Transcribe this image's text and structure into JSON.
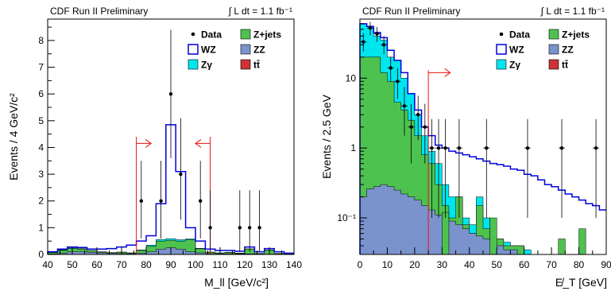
{
  "colors": {
    "wz_line": "#0000dd",
    "zgamma": "#00e5ee",
    "zjets": "#4ec24e",
    "zz": "#7a93cc",
    "ttbar": "#cc3333",
    "cut": "#ee1111"
  },
  "chart_data": [
    {
      "type": "bar",
      "header_left": "CDF Run II Preliminary",
      "header_right": "∫ L dt = 1.1 fb⁻¹",
      "xlabel": "M_ll [GeV/c²]",
      "ylabel": "Events / 4 GeV/c²",
      "xlim": [
        40,
        140
      ],
      "ylim": [
        0,
        8.8
      ],
      "xticks": [
        40,
        50,
        60,
        70,
        80,
        90,
        100,
        110,
        120,
        130,
        140
      ],
      "yticks": [
        0,
        1,
        2,
        3,
        4,
        5,
        6,
        7,
        8
      ],
      "legend_position": "top-right",
      "legend": [
        {
          "key": "data",
          "label": "Data",
          "kind": "marker"
        },
        {
          "key": "zjets",
          "label": "Z+jets",
          "kind": "fill"
        },
        {
          "key": "wz",
          "label": "WZ",
          "kind": "outline"
        },
        {
          "key": "zz",
          "label": "ZZ",
          "kind": "fill"
        },
        {
          "key": "zgamma",
          "label": "Zγ",
          "kind": "fill"
        },
        {
          "key": "ttbar",
          "label": "tt̄",
          "kind": "fill"
        }
      ],
      "bin_width": 4,
      "bin_edges_start": [
        40,
        44,
        48,
        52,
        56,
        60,
        64,
        68,
        72,
        76,
        80,
        84,
        88,
        92,
        96,
        100,
        104,
        108,
        112,
        116,
        120,
        124,
        128,
        132,
        136
      ],
      "stack": {
        "zz": [
          0.02,
          0.05,
          0.1,
          0.1,
          0.08,
          0.06,
          0.04,
          0.03,
          0.03,
          0.05,
          0.1,
          0.2,
          0.25,
          0.2,
          0.1,
          0.06,
          0.03,
          0.02,
          0.02,
          0.02,
          0.02,
          0.01,
          0.01,
          0.01,
          0.01
        ],
        "zjets": [
          0.05,
          0.1,
          0.12,
          0.1,
          0.06,
          0.03,
          0.02,
          0.05,
          0.02,
          0.1,
          0.2,
          0.3,
          0.28,
          0.3,
          0.45,
          0.15,
          0.05,
          0.03,
          0.05,
          0.02,
          0.18,
          0.02,
          0.15,
          0.02,
          0.01
        ],
        "zgamma": [
          0.01,
          0.02,
          0.02,
          0.02,
          0.01,
          0.01,
          0.01,
          0.01,
          0.01,
          0.02,
          0.05,
          0.06,
          0.06,
          0.05,
          0.03,
          0.02,
          0.01,
          0.01,
          0.01,
          0.01,
          0.01,
          0.01,
          0.01,
          0.01,
          0.01
        ],
        "ttbar": [
          0,
          0,
          0,
          0,
          0,
          0,
          0,
          0,
          0,
          0,
          0,
          0,
          0,
          0,
          0,
          0,
          0,
          0,
          0,
          0,
          0,
          0,
          0,
          0,
          0
        ]
      },
      "wz_total": [
        0.1,
        0.2,
        0.28,
        0.26,
        0.2,
        0.2,
        0.22,
        0.28,
        0.35,
        0.5,
        0.7,
        1.9,
        4.85,
        3.1,
        1.0,
        0.5,
        0.2,
        0.15,
        0.15,
        0.12,
        0.28,
        0.1,
        0.22,
        0.1,
        0.05
      ],
      "data_points": [
        {
          "x": 78,
          "y": 2,
          "err_lo": 1.4,
          "err_hi": 1.5
        },
        {
          "x": 86,
          "y": 2,
          "err_lo": 1.4,
          "err_hi": 1.5
        },
        {
          "x": 90,
          "y": 6,
          "err_lo": 2.4,
          "err_hi": 2.4
        },
        {
          "x": 94,
          "y": 3,
          "err_lo": 1.7,
          "err_hi": 2.1
        },
        {
          "x": 102,
          "y": 2,
          "err_lo": 1.4,
          "err_hi": 1.5
        },
        {
          "x": 106,
          "y": 1,
          "err_lo": 0.9,
          "err_hi": 1.4
        },
        {
          "x": 118,
          "y": 1,
          "err_lo": 0.9,
          "err_hi": 1.4
        },
        {
          "x": 122,
          "y": 1,
          "err_lo": 0.9,
          "err_hi": 1.4
        },
        {
          "x": 126,
          "y": 1,
          "err_lo": 0.9,
          "err_hi": 1.4
        }
      ],
      "cuts": [
        {
          "x": 76,
          "y_top": 4.4,
          "arrow": "right",
          "arrow_y": 4.15,
          "arrow_to": 82
        },
        {
          "x": 106,
          "y_top": 4.4,
          "arrow": "left",
          "arrow_y": 4.15,
          "arrow_to": 100
        }
      ]
    },
    {
      "type": "bar",
      "yscale": "log",
      "header_left": "CDF Run II Preliminary",
      "header_right": "∫ L dt = 1.1 fb⁻¹",
      "xlabel": "E̸_T [GeV]",
      "ylabel": "Events / 2.5 GeV",
      "xlim": [
        0,
        90
      ],
      "ylim": [
        0.03,
        70
      ],
      "xticks": [
        0,
        10,
        20,
        30,
        40,
        50,
        60,
        70,
        80,
        90
      ],
      "yticks": [
        0.1,
        1,
        10
      ],
      "ytick_labels": [
        "10⁻¹",
        "1",
        "10"
      ],
      "legend_position": "top-right",
      "legend": [
        {
          "key": "data",
          "label": "Data",
          "kind": "marker"
        },
        {
          "key": "zjets",
          "label": "Z+jets",
          "kind": "fill"
        },
        {
          "key": "wz",
          "label": "WZ",
          "kind": "outline"
        },
        {
          "key": "zz",
          "label": "ZZ",
          "kind": "fill"
        },
        {
          "key": "zgamma",
          "label": "Zγ",
          "kind": "fill"
        },
        {
          "key": "ttbar",
          "label": "tt̄",
          "kind": "fill"
        }
      ],
      "bin_width": 2.5,
      "zz": [
        0.2,
        0.26,
        0.28,
        0.3,
        0.28,
        0.25,
        0.22,
        0.2,
        0.18,
        0.15,
        0.13,
        0.11,
        0.1,
        0.09,
        0.08,
        0.07,
        0.06,
        0.055,
        0.05,
        0.045,
        0.04,
        0.035,
        0.035,
        0.03,
        0.03,
        0.03
      ],
      "zz_plus_zjets": [
        20,
        20,
        20,
        12,
        9,
        4.5,
        3.5,
        2.5,
        1.5,
        0.8,
        0.6,
        0.3,
        0.15,
        0.1,
        0.2,
        0.08,
        0.06,
        0.15,
        0.07,
        0.05,
        0.05,
        0.04,
        0.04,
        0.04,
        0.03,
        0.03
      ],
      "total_stack": [
        60,
        55,
        40,
        35,
        20,
        18,
        10,
        6,
        3,
        1.5,
        0.9,
        0.6,
        0.3,
        0.2,
        0.2,
        0.1,
        0.08,
        0.2,
        0.1,
        0.06,
        0.05,
        0.045,
        0.04,
        0.04,
        0.035,
        0.03
      ],
      "wz_line": [
        60,
        55,
        45,
        38,
        25,
        18,
        12,
        6,
        3.5,
        2,
        1.5,
        1.1,
        1.0,
        0.9,
        0.85,
        0.8,
        0.75,
        0.7,
        0.65,
        0.6,
        0.58,
        0.55,
        0.5,
        0.48,
        0.42,
        0.4,
        0.35,
        0.3,
        0.28,
        0.25,
        0.22,
        0.2,
        0.18,
        0.16,
        0.15,
        0.13
      ],
      "data_points": [
        {
          "x": 1.25,
          "y": 33,
          "err_lo": 9,
          "err_hi": 11
        },
        {
          "x": 3.75,
          "y": 52,
          "err_lo": 11,
          "err_hi": 12
        },
        {
          "x": 6.25,
          "y": 43,
          "err_lo": 10,
          "err_hi": 11
        },
        {
          "x": 8.75,
          "y": 30,
          "err_lo": 8,
          "err_hi": 10
        },
        {
          "x": 11.25,
          "y": 14,
          "err_lo": 5,
          "err_hi": 6
        },
        {
          "x": 13.75,
          "y": 9,
          "err_lo": 4,
          "err_hi": 5
        },
        {
          "x": 16.25,
          "y": 4,
          "err_lo": 2.5,
          "err_hi": 3.5
        },
        {
          "x": 18.75,
          "y": 2,
          "err_lo": 1.4,
          "err_hi": 2.3
        },
        {
          "x": 21.25,
          "y": 3,
          "err_lo": 1.7,
          "err_hi": 2.6
        },
        {
          "x": 23.75,
          "y": 2,
          "err_lo": 1.4,
          "err_hi": 2.3
        },
        {
          "x": 26.25,
          "y": 1,
          "err_lo": 0.9,
          "err_hi": 1.6
        },
        {
          "x": 28.75,
          "y": 1,
          "err_lo": 0.9,
          "err_hi": 1.6
        },
        {
          "x": 31.25,
          "y": 1,
          "err_lo": 0.9,
          "err_hi": 1.6
        },
        {
          "x": 36.25,
          "y": 1,
          "err_lo": 0.9,
          "err_hi": 1.6
        },
        {
          "x": 46.25,
          "y": 1,
          "err_lo": 0.9,
          "err_hi": 1.6
        },
        {
          "x": 61.25,
          "y": 1,
          "err_lo": 0.9,
          "err_hi": 1.6
        },
        {
          "x": 73.75,
          "y": 1,
          "err_lo": 0.9,
          "err_hi": 1.6
        },
        {
          "x": 86.25,
          "y": 1,
          "err_lo": 0.9,
          "err_hi": 1.6
        }
      ],
      "cut": {
        "x": 25,
        "y_top": 13,
        "arrow": "right",
        "arrow_y": 12,
        "arrow_to": 33
      }
    }
  ]
}
